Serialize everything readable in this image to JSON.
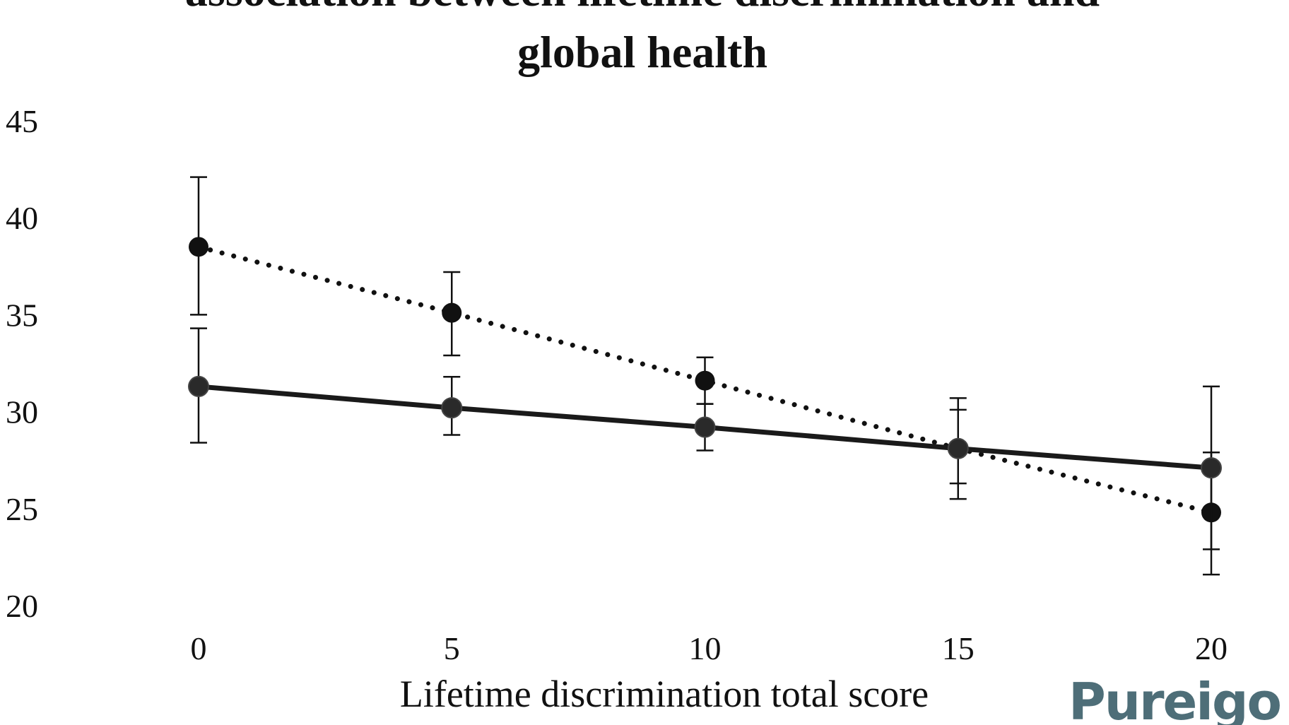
{
  "chart_data": {
    "type": "line",
    "title_lines": [
      "association between lifetime discrimination and",
      "global health"
    ],
    "xlabel": "Lifetime discrimination total score",
    "ylabel": "",
    "x": [
      0,
      5,
      10,
      15,
      20
    ],
    "x_ticks": [
      "0",
      "5",
      "10",
      "15",
      "20"
    ],
    "y_ticks": [
      "20",
      "25",
      "30",
      "35",
      "40",
      "45"
    ],
    "ylim": [
      20,
      45
    ],
    "xlim": [
      0,
      20
    ],
    "grid": false,
    "series": [
      {
        "style": "dotted",
        "values": [
          38.5,
          35.1,
          31.6,
          28.1,
          24.8
        ],
        "upper": [
          42.1,
          37.2,
          32.8,
          30.7,
          27.9
        ],
        "lower": [
          35.0,
          32.9,
          30.4,
          25.5,
          21.6
        ],
        "color": "#111111"
      },
      {
        "style": "solid",
        "values": [
          31.3,
          30.2,
          29.2,
          28.1,
          27.1
        ],
        "upper": [
          34.3,
          31.8,
          30.4,
          30.1,
          31.3
        ],
        "lower": [
          28.4,
          28.8,
          28.0,
          26.3,
          22.9
        ],
        "color": "#1a1a1a"
      }
    ]
  },
  "watermark": "Pureigo"
}
